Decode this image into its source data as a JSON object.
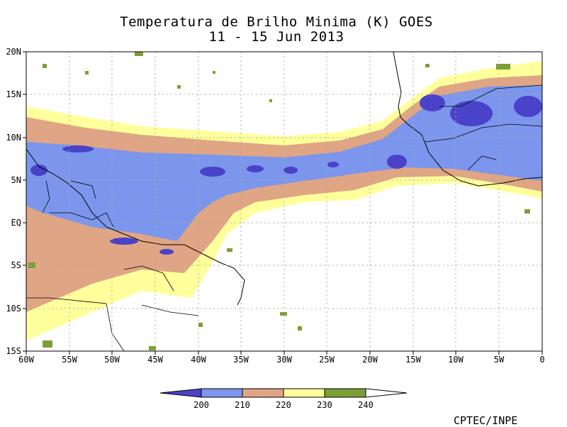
{
  "title": {
    "line1": "Temperatura de Brilho Minima (K) GOES",
    "line2": "11 - 15 Jun 2013"
  },
  "map": {
    "lon_ticks": [
      "60W",
      "55W",
      "50W",
      "45W",
      "40W",
      "35W",
      "30W",
      "25W",
      "20W",
      "15W",
      "10W",
      "5W",
      "0"
    ],
    "lat_ticks": [
      "20N",
      "15N",
      "10N",
      "5N",
      "EQ",
      "5S",
      "10S",
      "15S"
    ]
  },
  "legend": {
    "labels": [
      "200",
      "210",
      "220",
      "230",
      "240"
    ],
    "colors": [
      "#4a42c8",
      "#7b96ec",
      "#e0a584",
      "#ffff9c",
      "#7d9e35",
      "#ffffff"
    ]
  },
  "credit": "CPTEC/INPE"
}
